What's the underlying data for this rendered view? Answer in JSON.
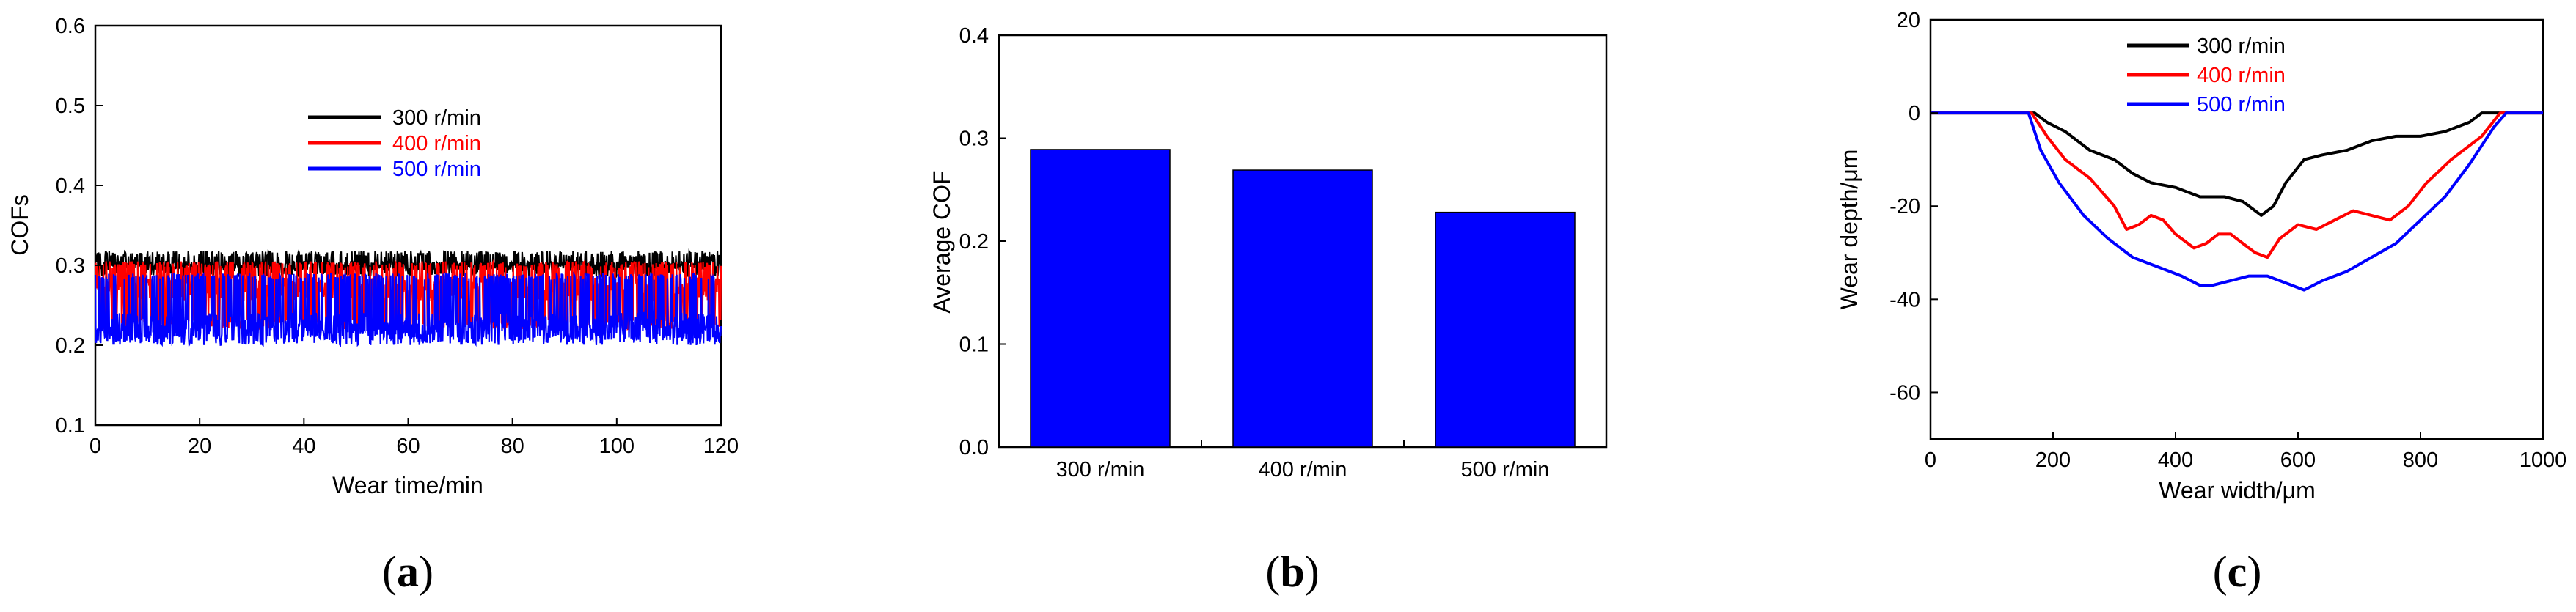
{
  "chart_data": [
    {
      "panel": "a",
      "type": "line",
      "xlabel": "Wear time/min",
      "ylabel": "COFs",
      "xlim": [
        0,
        120
      ],
      "ylim": [
        0.1,
        0.6
      ],
      "xticks": [
        0,
        20,
        40,
        60,
        80,
        100,
        120
      ],
      "yticks": [
        0.1,
        0.2,
        0.3,
        0.4,
        0.5,
        0.6
      ],
      "legend_position": "top-center",
      "series": [
        {
          "name": "300 r/min",
          "color": "#000000",
          "mean": 0.3,
          "low": 0.285,
          "high": 0.318
        },
        {
          "name": "400 r/min",
          "color": "#ff0000",
          "mean": 0.27,
          "low": 0.22,
          "high": 0.305
        },
        {
          "name": "500 r/min",
          "color": "#0000ff",
          "mean": 0.225,
          "low": 0.2,
          "high": 0.29
        }
      ],
      "x": [
        0,
        10,
        20,
        30,
        40,
        50,
        60,
        70,
        80,
        90,
        100,
        110,
        120
      ]
    },
    {
      "panel": "b",
      "type": "bar",
      "xlabel": "",
      "ylabel": "Average COF",
      "ylim": [
        0.0,
        0.4
      ],
      "yticks": [
        0.0,
        0.1,
        0.2,
        0.3,
        0.4
      ],
      "categories": [
        "300 r/min",
        "400 r/min",
        "500 r/min"
      ],
      "values": [
        0.289,
        0.269,
        0.228
      ],
      "bar_color": "#0000ff"
    },
    {
      "panel": "c",
      "type": "line",
      "xlabel": "Wear width/μm",
      "ylabel": "Wear depth/μm",
      "xlim": [
        0,
        1000
      ],
      "ylim": [
        -70,
        20
      ],
      "xticks": [
        0,
        200,
        400,
        600,
        800,
        1000
      ],
      "yticks": [
        20,
        0,
        -20,
        -40,
        -60
      ],
      "legend_position": "top-center",
      "series": [
        {
          "name": "300 r/min",
          "color": "#000000",
          "x": [
            0,
            170,
            190,
            220,
            260,
            300,
            330,
            360,
            400,
            440,
            480,
            510,
            540,
            560,
            580,
            610,
            640,
            680,
            720,
            760,
            800,
            840,
            880,
            900,
            920,
            1000
          ],
          "y": [
            0,
            0,
            -2,
            -4,
            -8,
            -10,
            -13,
            -15,
            -16,
            -18,
            -18,
            -19,
            -22,
            -20,
            -15,
            -10,
            -9,
            -8,
            -6,
            -5,
            -5,
            -4,
            -2,
            0,
            0,
            0
          ]
        },
        {
          "name": "400 r/min",
          "color": "#ff0000",
          "x": [
            0,
            165,
            190,
            220,
            260,
            300,
            320,
            340,
            360,
            380,
            400,
            430,
            450,
            470,
            490,
            510,
            530,
            550,
            570,
            600,
            630,
            660,
            690,
            720,
            750,
            780,
            810,
            850,
            900,
            930,
            1000
          ],
          "y": [
            0,
            0,
            -5,
            -10,
            -14,
            -20,
            -25,
            -24,
            -22,
            -23,
            -26,
            -29,
            -28,
            -26,
            -26,
            -28,
            -30,
            -31,
            -27,
            -24,
            -25,
            -23,
            -21,
            -22,
            -23,
            -20,
            -15,
            -10,
            -5,
            0,
            0
          ]
        },
        {
          "name": "500 r/min",
          "color": "#0000ff",
          "x": [
            0,
            160,
            180,
            210,
            250,
            290,
            330,
            370,
            410,
            440,
            460,
            490,
            520,
            550,
            570,
            590,
            610,
            640,
            680,
            720,
            760,
            800,
            840,
            880,
            920,
            940,
            1000
          ],
          "y": [
            0,
            0,
            -8,
            -15,
            -22,
            -27,
            -31,
            -33,
            -35,
            -37,
            -37,
            -36,
            -35,
            -35,
            -36,
            -37,
            -38,
            -36,
            -34,
            -31,
            -28,
            -23,
            -18,
            -11,
            -3,
            0,
            0
          ]
        }
      ]
    }
  ],
  "panel_labels": [
    "(a)",
    "(b)",
    "(c)"
  ]
}
